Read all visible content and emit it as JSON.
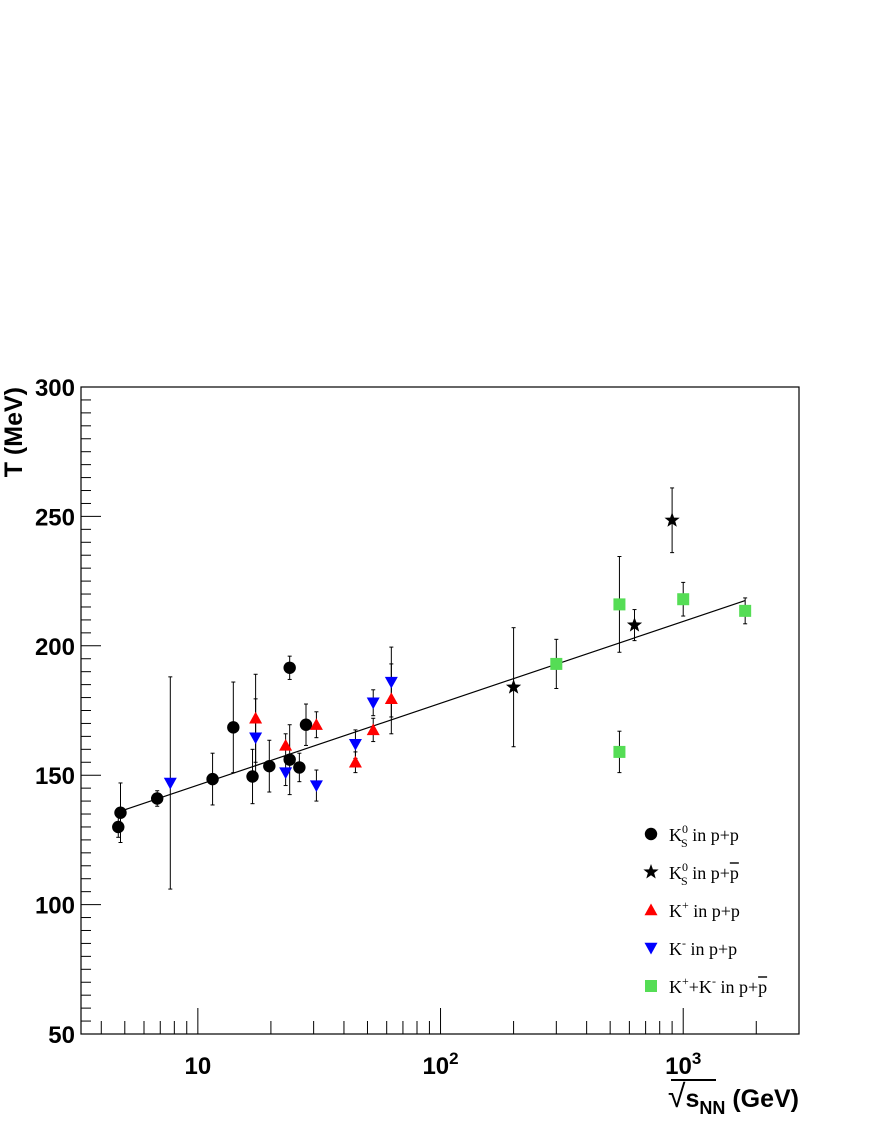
{
  "chart_data": {
    "type": "scatter",
    "xlabel": {
      "prefix": "√",
      "main": "s",
      "sub": "NN",
      "suffix": " (GeV)"
    },
    "ylabel": "T (MeV)",
    "x_scale": "log",
    "xlim": [
      3.3,
      3000
    ],
    "ylim": [
      50,
      300
    ],
    "x_tick_labels": [
      {
        "value": 10,
        "base": "10",
        "exp": ""
      },
      {
        "value": 100,
        "base": "10",
        "exp": "2"
      },
      {
        "value": 1000,
        "base": "10",
        "exp": "3"
      }
    ],
    "y_tick_labels": [
      "50",
      "100",
      "150",
      "200",
      "250",
      "300"
    ],
    "y_ticks": [
      50,
      100,
      150,
      200,
      250,
      300
    ],
    "grid": false,
    "legend_position": "bottom-right",
    "fit_line": {
      "x": [
        4.6,
        1800
      ],
      "y": [
        135.5,
        217.5
      ]
    },
    "series": [
      {
        "name": "K_S^0 in p+p",
        "legend": {
          "base": "K",
          "sup": "0",
          "sub": "S",
          "rest": " in p+p",
          "overline": ""
        },
        "marker": "circle",
        "color": "#000000",
        "points": [
          {
            "x": 4.7,
            "y": 130,
            "err": 4
          },
          {
            "x": 4.8,
            "y": 135.5,
            "err": 11.5
          },
          {
            "x": 6.8,
            "y": 141,
            "err": 3
          },
          {
            "x": 11.5,
            "y": 148.5,
            "err": 10
          },
          {
            "x": 14.0,
            "y": 168.5,
            "err": 17.5
          },
          {
            "x": 16.8,
            "y": 149.5,
            "err": 10.5
          },
          {
            "x": 19.7,
            "y": 153.5,
            "err": 10
          },
          {
            "x": 23.9,
            "y": 191.5,
            "err": 4.5
          },
          {
            "x": 23.9,
            "y": 156,
            "err": 13.5
          },
          {
            "x": 26.2,
            "y": 153,
            "err": 5.5
          },
          {
            "x": 27.9,
            "y": 169.5,
            "err": 8
          }
        ]
      },
      {
        "name": "K_S^0 in p+pbar",
        "legend": {
          "base": "K",
          "sup": "0",
          "sub": "S",
          "rest": " in p+",
          "overline": "p"
        },
        "marker": "star",
        "color": "#000000",
        "points": [
          {
            "x": 200,
            "y": 184,
            "err": 23
          },
          {
            "x": 630,
            "y": 208,
            "err": 6
          },
          {
            "x": 900,
            "y": 248.5,
            "err": 12.5
          }
        ]
      },
      {
        "name": "K+ in p+p",
        "legend": {
          "base": "K",
          "sup": "+",
          "sub": "",
          "rest": " in p+p",
          "overline": ""
        },
        "marker": "triangle-up",
        "color": "#ff0000",
        "points": [
          {
            "x": 17.3,
            "y": 172,
            "err": 17
          },
          {
            "x": 23.0,
            "y": 161.5,
            "err": 4.5
          },
          {
            "x": 30.8,
            "y": 169.5,
            "err": 5
          },
          {
            "x": 44.6,
            "y": 155,
            "err": 4
          },
          {
            "x": 52.8,
            "y": 167.5,
            "err": 4.5
          },
          {
            "x": 62.7,
            "y": 179.5,
            "err": 13.5
          }
        ]
      },
      {
        "name": "K- in p+p",
        "legend": {
          "base": "K",
          "sup": "-",
          "sub": "",
          "rest": " in p+p",
          "overline": ""
        },
        "marker": "triangle-down",
        "color": "#0000ff",
        "points": [
          {
            "x": 7.7,
            "y": 147,
            "err": 41
          },
          {
            "x": 17.3,
            "y": 164.5,
            "err": 15
          },
          {
            "x": 23.0,
            "y": 151,
            "err": 5
          },
          {
            "x": 30.8,
            "y": 146,
            "err": 6
          },
          {
            "x": 44.6,
            "y": 162,
            "err": 5.5
          },
          {
            "x": 52.8,
            "y": 178,
            "err": 5
          },
          {
            "x": 62.7,
            "y": 186,
            "err": 13.5
          }
        ]
      },
      {
        "name": "K+ + K- in p+pbar",
        "legend": {
          "base": "K",
          "sup": "+",
          "sub": "",
          "rest": "+K",
          "sup2": "-",
          "rest2": " in p+",
          "overline": "p"
        },
        "marker": "square",
        "color": "#55dd55",
        "points": [
          {
            "x": 300,
            "y": 193,
            "err": 9.5
          },
          {
            "x": 546,
            "y": 216,
            "err": 18.5
          },
          {
            "x": 546,
            "y": 159,
            "err": 8
          },
          {
            "x": 1000,
            "y": 218,
            "err": 6.5
          },
          {
            "x": 1800,
            "y": 213.5,
            "err": 5
          }
        ]
      }
    ]
  }
}
